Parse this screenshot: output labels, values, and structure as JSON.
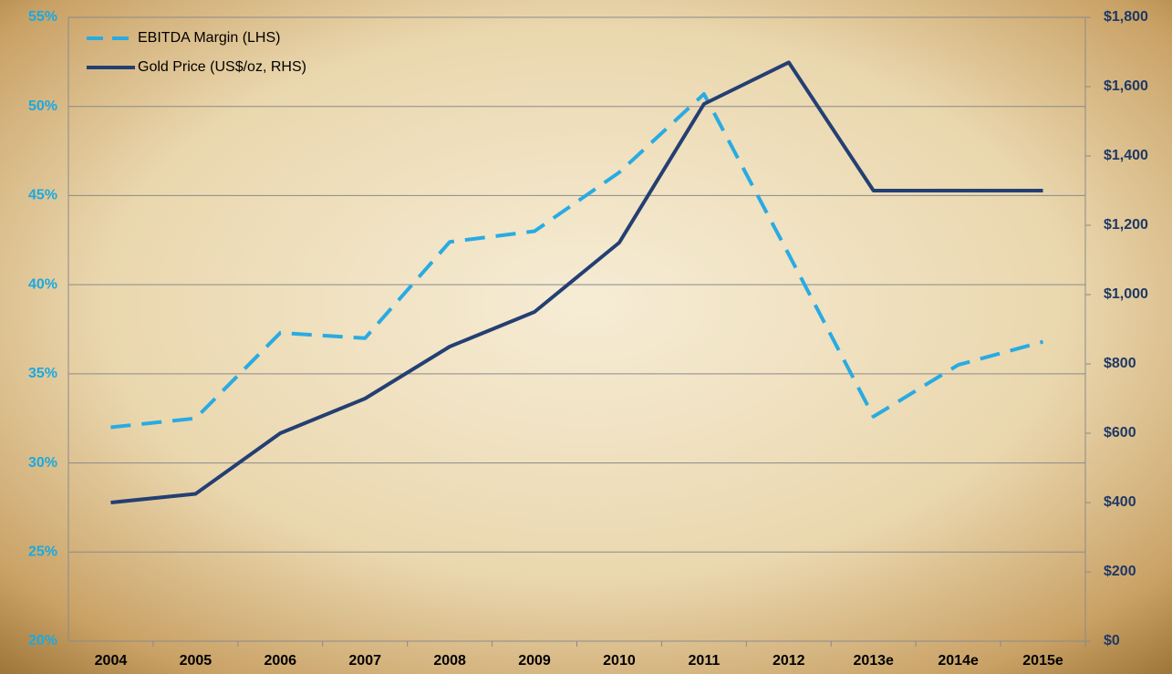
{
  "chart_data": {
    "type": "line",
    "categories": [
      "2004",
      "2005",
      "2006",
      "2007",
      "2008",
      "2009",
      "2010",
      "2011",
      "2012",
      "2013e",
      "2014e",
      "2015e"
    ],
    "series": [
      {
        "name": "EBITDA Margin (LHS)",
        "color": "#29abe2",
        "dashed": true,
        "axis": "y",
        "values": [
          32,
          32.5,
          37.3,
          37,
          42.4,
          43,
          46.3,
          50.7,
          41.7,
          32.6,
          35.5,
          36.8
        ]
      },
      {
        "name": "Gold Price (US$/oz, RHS)",
        "color": "#243f72",
        "dashed": false,
        "axis": "y2",
        "values": [
          400,
          425,
          600,
          700,
          850,
          950,
          1150,
          1550,
          1670,
          1300,
          1300,
          1300
        ]
      }
    ],
    "ylim": [
      20,
      55
    ],
    "yticks": [
      {
        "value": 20,
        "label": "20%"
      },
      {
        "value": 25,
        "label": "25%"
      },
      {
        "value": 30,
        "label": "30%"
      },
      {
        "value": 35,
        "label": "35%"
      },
      {
        "value": 40,
        "label": "40%"
      },
      {
        "value": 45,
        "label": "45%"
      },
      {
        "value": 50,
        "label": "50%"
      },
      {
        "value": 55,
        "label": "55%"
      }
    ],
    "y2lim": [
      0,
      1800
    ],
    "y2ticks": [
      {
        "value": 0,
        "label": "$0"
      },
      {
        "value": 200,
        "label": "$200"
      },
      {
        "value": 400,
        "label": "$400"
      },
      {
        "value": 600,
        "label": "$600"
      },
      {
        "value": 800,
        "label": "$800"
      },
      {
        "value": 1000,
        "label": "$1,000"
      },
      {
        "value": 1200,
        "label": "$1,200"
      },
      {
        "value": 1400,
        "label": "$1,400"
      },
      {
        "value": 1600,
        "label": "$1,600"
      },
      {
        "value": 1800,
        "label": "$1,800"
      }
    ],
    "grid": true,
    "legend": "upper left",
    "ytick_color": "#1aa9e0",
    "y2tick_color": "#1f3864"
  }
}
